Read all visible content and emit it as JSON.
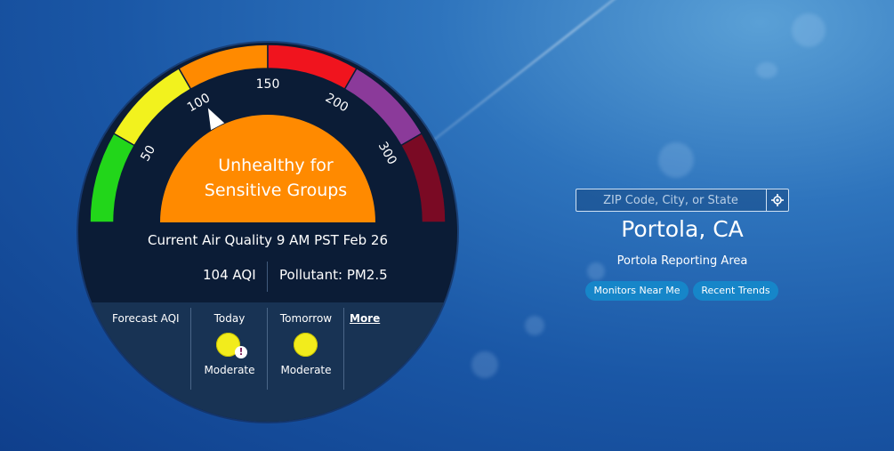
{
  "gauge": {
    "ticks": [
      "50",
      "100",
      "150",
      "200",
      "300"
    ],
    "status_line1": "Unhealthy for",
    "status_line2": "Sensitive Groups",
    "status_color": "#ff8a00",
    "aqi": 104,
    "segments": [
      {
        "level": "good",
        "color": "#22d61a"
      },
      {
        "level": "moderate",
        "color": "#f2f21e"
      },
      {
        "level": "usg",
        "color": "#ff8a00"
      },
      {
        "level": "unhealthy",
        "color": "#f0141e"
      },
      {
        "level": "very-unhealthy",
        "color": "#8b3a9a"
      },
      {
        "level": "hazardous",
        "color": "#7a0a24"
      }
    ]
  },
  "current": {
    "line": "Current Air Quality 9 AM PST Feb 26",
    "aqi_text": "104 AQI",
    "pollutant_text": "Pollutant: PM2.5"
  },
  "forecast": {
    "label": "Forecast AQI",
    "today_label": "Today",
    "today_status": "Moderate",
    "today_alert": "!",
    "tomorrow_label": "Tomorrow",
    "tomorrow_status": "Moderate",
    "more_label": "More",
    "dot_color": "#f2ec1c"
  },
  "search": {
    "placeholder": "ZIP Code, City, or State",
    "locate_icon": "crosshair-icon"
  },
  "location": {
    "city": "Portola, CA",
    "area": "Portola Reporting Area"
  },
  "buttons": {
    "monitors": "Monitors Near Me",
    "trends": "Recent Trends"
  }
}
